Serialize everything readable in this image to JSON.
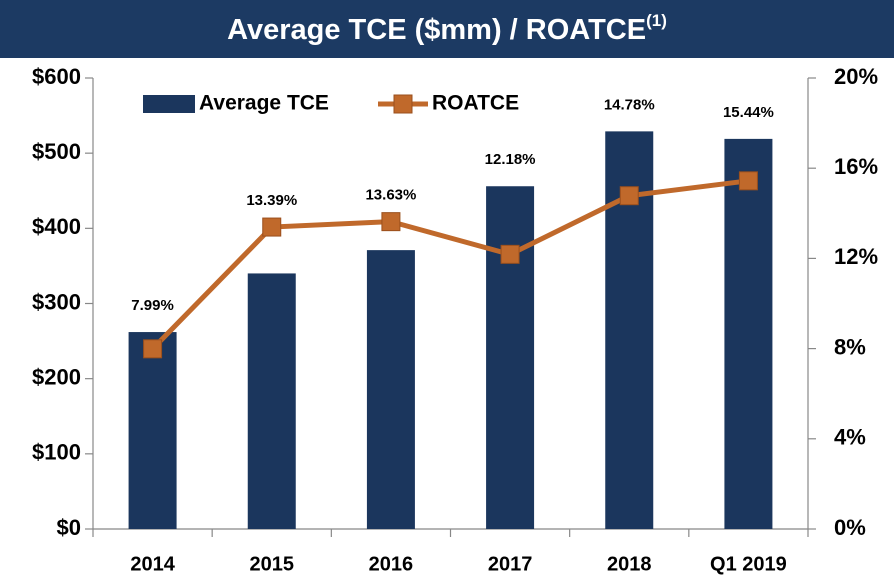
{
  "chart_data": {
    "type": "bar_line",
    "title": "Average TCE ($mm) / ROATCE",
    "title_note": "(1)",
    "categories": [
      "2014",
      "2015",
      "2016",
      "2017",
      "2018",
      "Q1 2019"
    ],
    "series": [
      {
        "name": "Average TCE",
        "type": "bar",
        "color": "#1b365d",
        "values": [
          262,
          340,
          371,
          456,
          529,
          519
        ]
      },
      {
        "name": "ROATCE",
        "type": "line",
        "axis": "y2",
        "color": "#c0692b",
        "values": [
          7.99,
          13.39,
          13.63,
          12.18,
          14.78,
          15.44
        ],
        "value_labels": [
          "7.99%",
          "13.39%",
          "13.63%",
          "12.18%",
          "14.78%",
          "15.44%"
        ]
      }
    ],
    "ylim": [
      0,
      600
    ],
    "yticks": [
      {
        "value": 0,
        "label": "$0"
      },
      {
        "value": 100,
        "label": "$100"
      },
      {
        "value": 200,
        "label": "$200"
      },
      {
        "value": 300,
        "label": "$300"
      },
      {
        "value": 400,
        "label": "$400"
      },
      {
        "value": 500,
        "label": "$500"
      },
      {
        "value": 600,
        "label": "$600"
      }
    ],
    "y2lim": [
      0,
      20
    ],
    "y2ticks": [
      {
        "value": 0,
        "label": "0%"
      },
      {
        "value": 4,
        "label": "4%"
      },
      {
        "value": 8,
        "label": "8%"
      },
      {
        "value": 12,
        "label": "12%"
      },
      {
        "value": 16,
        "label": "16%"
      },
      {
        "value": 20,
        "label": "20%"
      }
    ],
    "legend": "top-left"
  }
}
